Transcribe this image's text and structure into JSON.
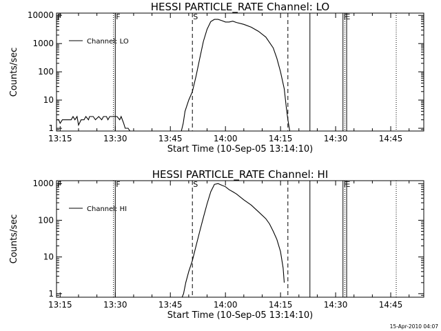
{
  "chart_data": [
    {
      "type": "line",
      "title": "HESSI PARTICLE_RATE Channel: LO",
      "xlabel": "Start Time (10-Sep-05 13:14:10)",
      "ylabel": "Counts/sec",
      "y_scale": "log",
      "ylim": [
        0.8,
        12000
      ],
      "xlim": [
        "13:14",
        "14:54"
      ],
      "xticks": [
        "13:15",
        "13:30",
        "13:45",
        "14:00",
        "14:15",
        "14:30",
        "14:45"
      ],
      "yticks": [
        "1",
        "10",
        "100",
        "1000",
        "10000"
      ],
      "legend": {
        "label": "Channel: LO",
        "placement": "top-left"
      },
      "vertical_markers": [
        {
          "time": "13:14",
          "style": "solid",
          "label": "F"
        },
        {
          "time": "13:30",
          "style": "solid",
          "label": "F"
        },
        {
          "time": "13:29.5",
          "style": "dotted",
          "label": ""
        },
        {
          "time": "13:51",
          "style": "dashed",
          "label": "S"
        },
        {
          "time": "14:17",
          "style": "dashed",
          "label": ""
        },
        {
          "time": "14:23",
          "style": "solid",
          "label": ""
        },
        {
          "time": "14:32",
          "style": "solid",
          "label": "F"
        },
        {
          "time": "14:32.5",
          "style": "dotted",
          "label": "E"
        },
        {
          "time": "14:33",
          "style": "solid",
          "label": ""
        },
        {
          "time": "14:46.5",
          "style": "dotted",
          "label": ""
        }
      ],
      "series": [
        {
          "name": "Channel: LO",
          "segments": [
            [
              [
                "13:14",
                2
              ],
              [
                "13:14.6",
                2
              ],
              [
                "13:15",
                1.5
              ],
              [
                "13:15.6",
                2
              ],
              [
                "13:18",
                2
              ],
              [
                "13:18.5",
                2.6
              ],
              [
                "13:19",
                2
              ],
              [
                "13:19.6",
                2.6
              ],
              [
                "13:20",
                1.3
              ],
              [
                "13:20.7",
                2
              ],
              [
                "13:21.5",
                2
              ],
              [
                "13:22",
                2.6
              ],
              [
                "13:22.7",
                2
              ],
              [
                "13:23",
                2.6
              ],
              [
                "13:24",
                2.6
              ],
              [
                "13:24.6",
                2
              ],
              [
                "13:25.5",
                2.6
              ],
              [
                "13:26.3",
                2
              ],
              [
                "13:26.8",
                2.6
              ],
              [
                "13:27.6",
                2.6
              ],
              [
                "13:28",
                2
              ],
              [
                "13:28.5",
                2.6
              ],
              [
                "13:29.5",
                2.6
              ],
              [
                "13:30.5",
                2.6
              ],
              [
                "13:31.2",
                2
              ],
              [
                "13:31.6",
                2.6
              ],
              [
                "13:32.3",
                1.5
              ],
              [
                "13:32.7",
                1
              ],
              [
                "13:33.5",
                1
              ],
              [
                "13:34",
                0.8
              ]
            ],
            [
              [
                "13:48",
                0.8
              ],
              [
                "13:48.5",
                1.5
              ],
              [
                "13:49",
                4
              ],
              [
                "13:50",
                10
              ],
              [
                "13:51",
                20
              ],
              [
                "13:52",
                70
              ],
              [
                "13:53",
                300
              ],
              [
                "13:54",
                1200
              ],
              [
                "13:55",
                3200
              ],
              [
                "13:56",
                6000
              ],
              [
                "13:57",
                7200
              ],
              [
                "13:58",
                7200
              ],
              [
                "13:59",
                6500
              ],
              [
                "14:00",
                5800
              ],
              [
                "14:01",
                5800
              ],
              [
                "14:02",
                6200
              ],
              [
                "14:03",
                5600
              ],
              [
                "14:05",
                4800
              ],
              [
                "14:07",
                3800
              ],
              [
                "14:09",
                2700
              ],
              [
                "14:11",
                1700
              ],
              [
                "14:13",
                700
              ],
              [
                "14:14",
                300
              ],
              [
                "14:15",
                100
              ],
              [
                "14:16",
                25
              ],
              [
                "14:16.6",
                5
              ],
              [
                "14:17",
                2
              ],
              [
                "14:17.5",
                0.8
              ]
            ]
          ]
        }
      ]
    },
    {
      "type": "line",
      "title": "HESSI PARTICLE_RATE Channel: HI",
      "xlabel": "Start Time (10-Sep-05 13:14:10)",
      "ylabel": "Counts/sec",
      "y_scale": "log",
      "ylim": [
        0.8,
        1200
      ],
      "xlim": [
        "13:14",
        "14:54"
      ],
      "xticks": [
        "13:15",
        "13:30",
        "13:45",
        "14:00",
        "14:15",
        "14:30",
        "14:45"
      ],
      "yticks": [
        "1",
        "10",
        "100",
        "1000"
      ],
      "legend": {
        "label": "Channel: HI",
        "placement": "top-left"
      },
      "vertical_markers": [
        {
          "time": "13:14",
          "style": "solid",
          "label": "F"
        },
        {
          "time": "13:30",
          "style": "solid",
          "label": "F"
        },
        {
          "time": "13:29.5",
          "style": "dotted",
          "label": ""
        },
        {
          "time": "13:51",
          "style": "dashed",
          "label": "S"
        },
        {
          "time": "14:17",
          "style": "dashed",
          "label": ""
        },
        {
          "time": "14:23",
          "style": "solid",
          "label": ""
        },
        {
          "time": "14:32",
          "style": "solid",
          "label": "F"
        },
        {
          "time": "14:32.5",
          "style": "dotted",
          "label": "E"
        },
        {
          "time": "14:33",
          "style": "solid",
          "label": ""
        },
        {
          "time": "14:46.5",
          "style": "dotted",
          "label": ""
        }
      ],
      "series": [
        {
          "name": "Channel: HI",
          "segments": [
            [
              [
                "13:48.2",
                0.8
              ],
              [
                "13:48.6",
                1
              ],
              [
                "13:49.2",
                2
              ],
              [
                "13:50",
                4
              ],
              [
                "13:51",
                8
              ],
              [
                "13:52",
                20
              ],
              [
                "13:53",
                50
              ],
              [
                "13:54",
                120
              ],
              [
                "13:55",
                280
              ],
              [
                "13:56",
                600
              ],
              [
                "13:57",
                950
              ],
              [
                "13:58",
                1000
              ],
              [
                "13:59",
                900
              ],
              [
                "14:00",
                820
              ],
              [
                "14:01",
                680
              ],
              [
                "14:02",
                600
              ],
              [
                "14:03",
                520
              ],
              [
                "14:05",
                360
              ],
              [
                "14:07",
                260
              ],
              [
                "14:09",
                170
              ],
              [
                "14:11",
                110
              ],
              [
                "14:12",
                80
              ],
              [
                "14:13",
                50
              ],
              [
                "14:14",
                30
              ],
              [
                "14:15",
                14
              ],
              [
                "14:15.7",
                5
              ],
              [
                "14:16",
                2
              ]
            ]
          ]
        }
      ]
    }
  ],
  "footer": {
    "timestamp": "15-Apr-2010 04:07"
  }
}
